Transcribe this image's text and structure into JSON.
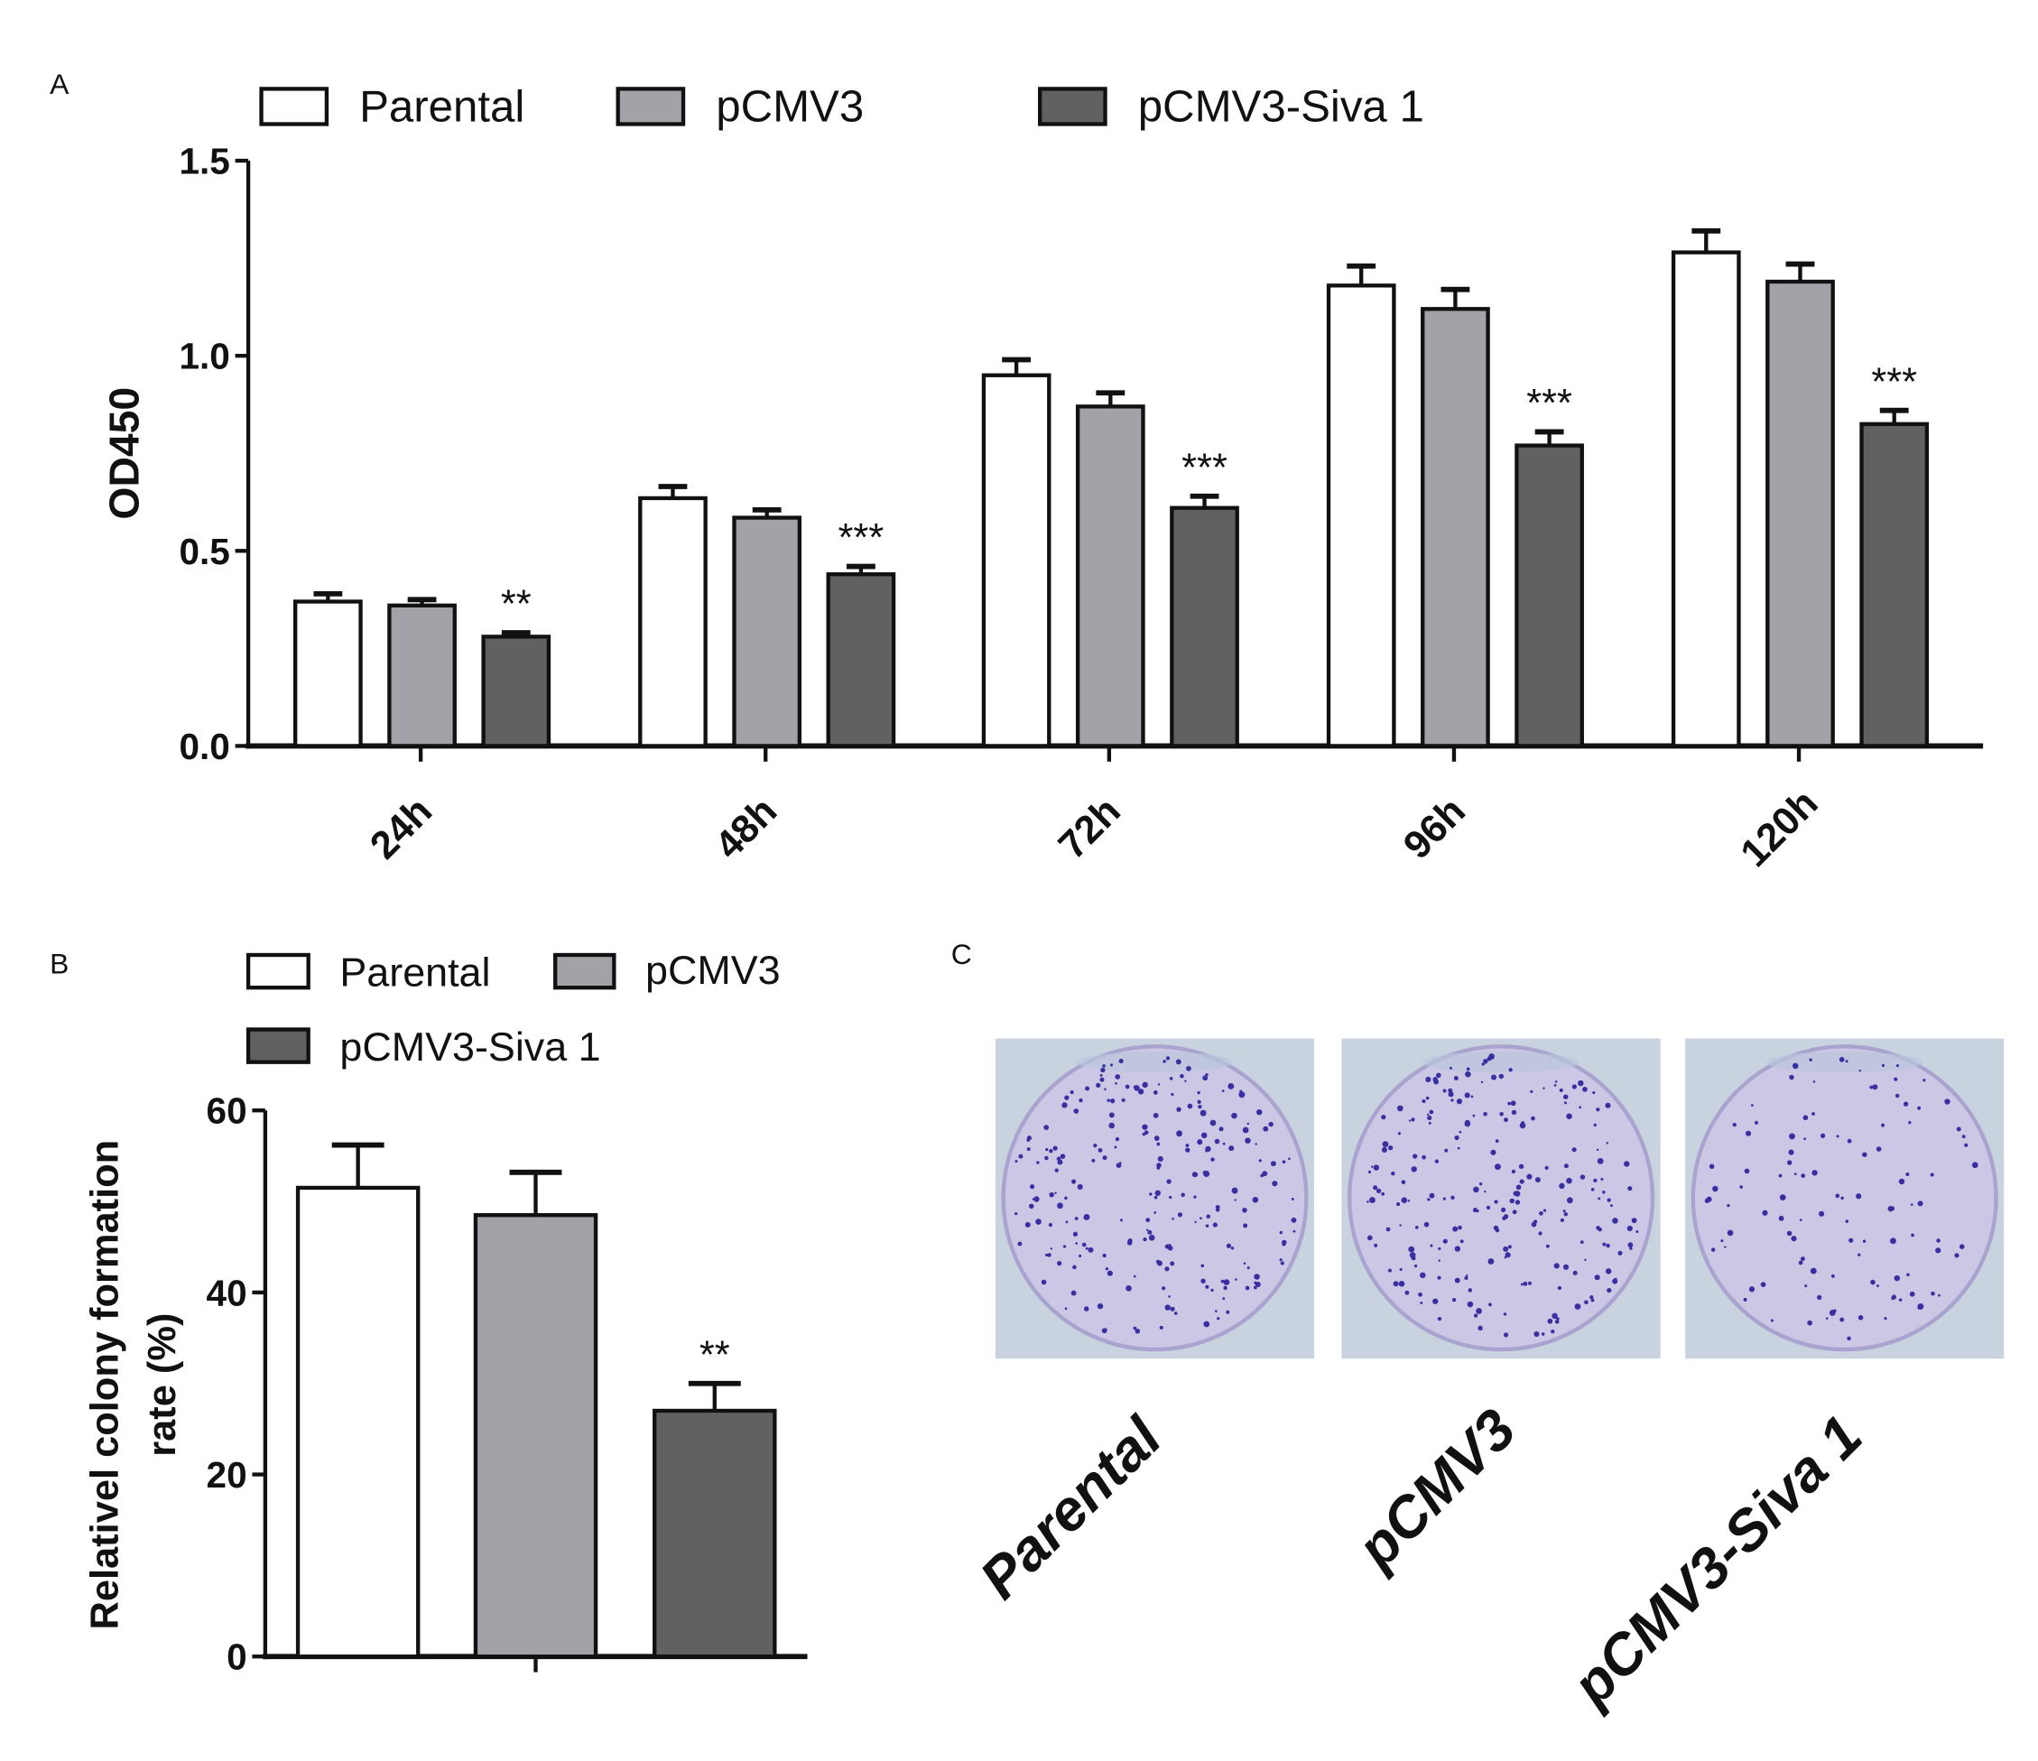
{
  "panels": {
    "a": "A",
    "b": "B",
    "c": "C"
  },
  "colors": {
    "Parental": "#ffffff",
    "pCMV3": "#a2a2a8",
    "pCMV3-Siva 1": "#616161",
    "plate_bg": "#c9d3e0",
    "plate": "#cbc7e4",
    "colony": "#3a2fa0"
  },
  "chart_data": [
    {
      "type": "bar",
      "panel": "A",
      "categories": [
        "24h",
        "48h",
        "72h",
        "96h",
        "120h"
      ],
      "ylabel": "OD450",
      "xlabel": "",
      "ylim": [
        0,
        1.5
      ],
      "yticks": [
        "0.0",
        "0.5",
        "1.0",
        "1.5"
      ],
      "legend": "top",
      "grid": false,
      "series": [
        {
          "name": "Parental",
          "values": [
            0.37,
            0.635,
            0.95,
            1.18,
            1.265
          ],
          "errors": [
            0.02,
            0.03,
            0.04,
            0.05,
            0.055
          ],
          "annotations": [
            "",
            "",
            "",
            "",
            ""
          ]
        },
        {
          "name": "pCMV3",
          "values": [
            0.36,
            0.585,
            0.87,
            1.12,
            1.19
          ],
          "errors": [
            0.015,
            0.02,
            0.035,
            0.05,
            0.045
          ],
          "annotations": [
            "",
            "",
            "",
            "",
            ""
          ]
        },
        {
          "name": "pCMV3-Siva 1",
          "values": [
            0.28,
            0.44,
            0.61,
            0.77,
            0.825
          ],
          "errors": [
            0.01,
            0.02,
            0.03,
            0.035,
            0.035
          ],
          "annotations": [
            "**",
            "***",
            "***",
            "***",
            "***"
          ]
        }
      ]
    },
    {
      "type": "bar",
      "panel": "B",
      "categories": [
        ""
      ],
      "ylabel": "Relativel colony formation rate (%)",
      "ylabel_lines": [
        "Relativel colony formation",
        "rate (%)"
      ],
      "ylim": [
        0,
        60
      ],
      "yticks": [
        "0",
        "20",
        "40",
        "60"
      ],
      "legend": "top",
      "grid": false,
      "series": [
        {
          "name": "Parental",
          "values": [
            51.5
          ],
          "errors": [
            4.7
          ],
          "annotations": [
            ""
          ]
        },
        {
          "name": "pCMV3",
          "values": [
            48.5
          ],
          "errors": [
            4.7
          ],
          "annotations": [
            ""
          ]
        },
        {
          "name": "pCMV3-Siva 1",
          "values": [
            27
          ],
          "errors": [
            3
          ],
          "annotations": [
            "**"
          ]
        }
      ]
    }
  ],
  "plates": {
    "labels": [
      "Parental",
      "pCMV3",
      "pCMV3-Siva 1"
    ],
    "colony_density": [
      "high",
      "high",
      "low"
    ]
  }
}
